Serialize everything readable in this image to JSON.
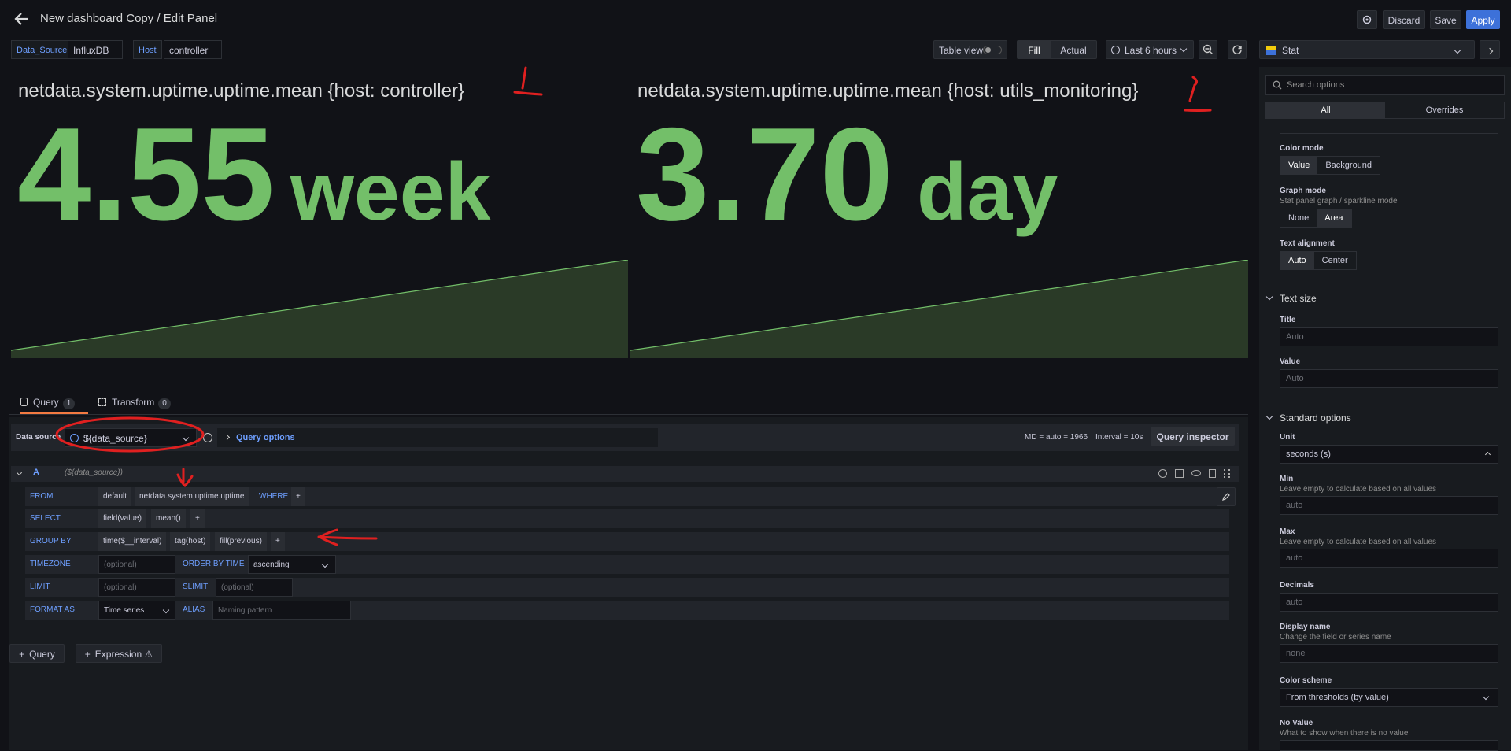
{
  "header": {
    "title": "New dashboard Copy / Edit Panel",
    "discard_label": "Discard",
    "save_label": "Save",
    "apply_label": "Apply"
  },
  "variables": {
    "datasource_label": "Data_Source",
    "datasource_value": "InfluxDB",
    "host_label": "Host",
    "host_value": "controller"
  },
  "toolbar": {
    "table_view_label": "Table view",
    "fill_label": "Fill",
    "actual_label": "Actual",
    "time_range": "Last 6 hours",
    "viz_type": "Stat"
  },
  "panels": [
    {
      "title": "netdata.system.uptime.uptime.mean {host: controller}",
      "value": "4.55",
      "unit": "week"
    },
    {
      "title": "netdata.system.uptime.uptime.mean {host: utils_monitoring}",
      "value": "3.70",
      "unit": "day"
    }
  ],
  "tabs": {
    "query_label": "Query",
    "query_count": "1",
    "transform_label": "Transform",
    "transform_count": "0"
  },
  "query_header": {
    "datasource_label": "Data source",
    "datasource_value": "${data_source}",
    "query_options_label": "Query options",
    "md_info": "MD = auto = 1966",
    "interval_info": "Interval = 10s",
    "inspector_label": "Query inspector"
  },
  "query": {
    "ref_id": "A",
    "ref_ds": "(${data_source})",
    "from_label": "FROM",
    "from_policy": "default",
    "from_measurement": "netdata.system.uptime.uptime",
    "where_label": "WHERE",
    "plus": "+",
    "select_label": "SELECT",
    "select_field": "field(value)",
    "select_fn": "mean()",
    "groupby_label": "GROUP BY",
    "groupby_time": "time($__interval)",
    "groupby_tag": "tag(host)",
    "groupby_fill": "fill(previous)",
    "timezone_label": "TIMEZONE",
    "timezone_placeholder": "(optional)",
    "orderby_label": "ORDER BY TIME",
    "orderby_value": "ascending",
    "limit_label": "LIMIT",
    "limit_placeholder": "(optional)",
    "slimit_label": "SLIMIT",
    "slimit_placeholder": "(optional)",
    "format_label": "FORMAT AS",
    "format_value": "Time series",
    "alias_label": "ALIAS",
    "alias_placeholder": "Naming pattern"
  },
  "add_buttons": {
    "query_label": "Query",
    "expression_label": "Expression ⚠"
  },
  "options": {
    "search_placeholder": "Search options",
    "tab_all": "All",
    "tab_overrides": "Overrides",
    "color_mode_label": "Color mode",
    "color_mode_value": "Value",
    "color_mode_bg": "Background",
    "graph_mode_label": "Graph mode",
    "graph_mode_desc": "Stat panel graph / sparkline mode",
    "graph_mode_none": "None",
    "graph_mode_area": "Area",
    "text_align_label": "Text alignment",
    "text_align_auto": "Auto",
    "text_align_center": "Center",
    "text_size_section": "Text size",
    "title_label": "Title",
    "title_placeholder": "Auto",
    "value_label": "Value",
    "value_placeholder": "Auto",
    "standard_section": "Standard options",
    "unit_label": "Unit",
    "unit_value": "seconds (s)",
    "min_label": "Min",
    "min_desc": "Leave empty to calculate based on all values",
    "min_placeholder": "auto",
    "max_label": "Max",
    "max_desc": "Leave empty to calculate based on all values",
    "max_placeholder": "auto",
    "decimals_label": "Decimals",
    "decimals_placeholder": "auto",
    "display_name_label": "Display name",
    "display_name_desc": "Change the field or series name",
    "display_name_placeholder": "none",
    "color_scheme_label": "Color scheme",
    "color_scheme_value": "From thresholds (by value)",
    "no_value_label": "No Value",
    "no_value_desc": "What to show when there is no value"
  },
  "colors": {
    "accent": "#3d71d9",
    "stat_green": "#73bf69",
    "annotation_red": "#e02020"
  }
}
